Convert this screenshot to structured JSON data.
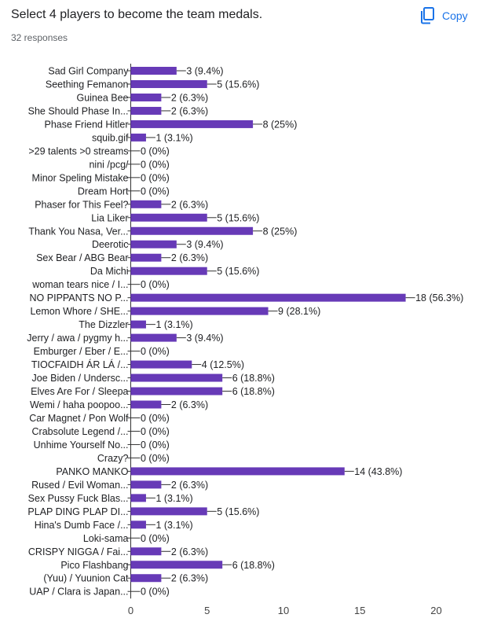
{
  "header": {
    "title": "Select 4 players to become the team medals.",
    "responses": "32 responses",
    "copy_label": "Copy",
    "copy_icon": "copy-icon"
  },
  "colors": {
    "bar": "#673ab7",
    "axis": "#333333",
    "grid": "#dadce0",
    "label": "#202124",
    "accent": "#1a73e8"
  },
  "chart_data": {
    "type": "bar",
    "orientation": "horizontal",
    "title": "Select 4 players to become the team medals.",
    "xlim": [
      0,
      20
    ],
    "xticks": [
      0,
      5,
      10,
      15,
      20
    ],
    "categories": [
      "Sad Girl Company",
      "Seething Femanon",
      "Guinea Bee",
      "She Should Phase In...",
      "Phase Friend Hitler",
      "squib.gif",
      ">29 talents >0 streams",
      "nini /pcg/",
      "Minor Speling Mistake",
      "Dream Hort",
      "Phaser for This Feel?",
      "Lia Liker",
      "Thank You Nasa, Ver...",
      "Deerotic",
      "Sex Bear / ABG Bear",
      "Da Michi",
      "woman tears nice / I...",
      "NO PIPPANTS NO P...",
      "Lemon Whore / SHE...",
      "The Dizzler",
      "Jerry / awa / pygmy h...",
      "Emburger / Eber / E...",
      "TIOCFAIDH ÁR LÁ /...",
      "Joe Biden / Undersc...",
      "Elves Are For / Sleepa",
      "Wemi / haha poopoo...",
      "Car Magnet / Pon Wolf",
      "Crabsolute Legend /...",
      "Unhime Yourself No...",
      "Crazy?",
      "PANKO MANKO",
      "Rused / Evil Woman...",
      "Sex Pussy Fuck Blas...",
      "PLAP DING PLAP DI...",
      "Hina's Dumb Face /...",
      "Loki-sama",
      "CRISPY NIGGA / Fai...",
      "Pico Flashbang",
      "(Yuu) / Yuunion Cat",
      "UAP / Clara is Japan..."
    ],
    "values": [
      3,
      5,
      2,
      2,
      8,
      1,
      0,
      0,
      0,
      0,
      2,
      5,
      8,
      3,
      2,
      5,
      0,
      18,
      9,
      1,
      3,
      0,
      4,
      6,
      6,
      2,
      0,
      0,
      0,
      0,
      14,
      2,
      1,
      5,
      1,
      0,
      2,
      6,
      2,
      0
    ],
    "data_labels": [
      "3 (9.4%)",
      "5 (15.6%)",
      "2 (6.3%)",
      "2 (6.3%)",
      "8 (25%)",
      "1 (3.1%)",
      "0 (0%)",
      "0 (0%)",
      "0 (0%)",
      "0 (0%)",
      "2 (6.3%)",
      "5 (15.6%)",
      "8 (25%)",
      "3 (9.4%)",
      "2 (6.3%)",
      "5 (15.6%)",
      "0 (0%)",
      "18 (56.3%)",
      "9 (28.1%)",
      "1 (3.1%)",
      "3 (9.4%)",
      "0 (0%)",
      "4 (12.5%)",
      "6 (18.8%)",
      "6 (18.8%)",
      "2 (6.3%)",
      "0 (0%)",
      "0 (0%)",
      "0 (0%)",
      "0 (0%)",
      "14 (43.8%)",
      "2 (6.3%)",
      "1 (3.1%)",
      "5 (15.6%)",
      "1 (3.1%)",
      "0 (0%)",
      "2 (6.3%)",
      "6 (18.8%)",
      "2 (6.3%)",
      "0 (0%)"
    ]
  }
}
